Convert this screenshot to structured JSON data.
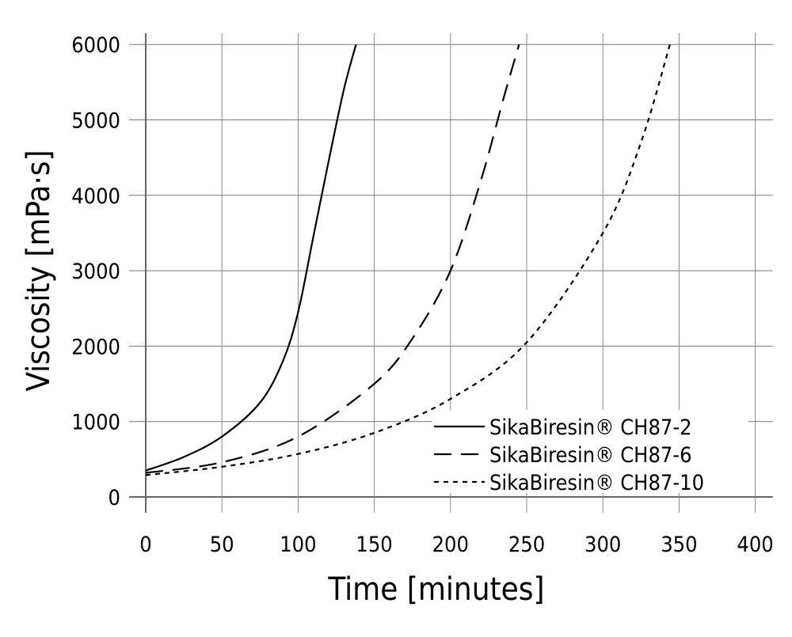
{
  "chart_data": {
    "type": "line",
    "xlabel": "Time [minutes]",
    "ylabel": "Viscosity [mPa·s]",
    "xlim": [
      0,
      410
    ],
    "ylim": [
      0,
      6000
    ],
    "xticks": [
      0,
      50,
      100,
      150,
      200,
      250,
      300,
      350,
      400
    ],
    "yticks": [
      0,
      1000,
      2000,
      3000,
      4000,
      5000,
      6000
    ],
    "grid": true,
    "legend_position": "bottom-right",
    "series": [
      {
        "name": "SikaBiresin® CH87-2",
        "style": "solid",
        "x": [
          0,
          25,
          50,
          75,
          90,
          100,
          110,
          120,
          130,
          138
        ],
        "y": [
          350,
          530,
          800,
          1250,
          1800,
          2450,
          3450,
          4450,
          5400,
          6000
        ]
      },
      {
        "name": "SikaBiresin® CH87-6",
        "style": "dashed",
        "x": [
          0,
          50,
          100,
          150,
          175,
          200,
          220,
          235,
          245
        ],
        "y": [
          320,
          460,
          800,
          1500,
          2100,
          3000,
          4200,
          5300,
          6000
        ]
      },
      {
        "name": "SikaBiresin® CH87-10",
        "style": "dotted",
        "x": [
          0,
          50,
          100,
          150,
          200,
          250,
          300,
          325,
          344
        ],
        "y": [
          290,
          400,
          570,
          850,
          1300,
          2050,
          3500,
          4700,
          6000
        ]
      }
    ]
  }
}
